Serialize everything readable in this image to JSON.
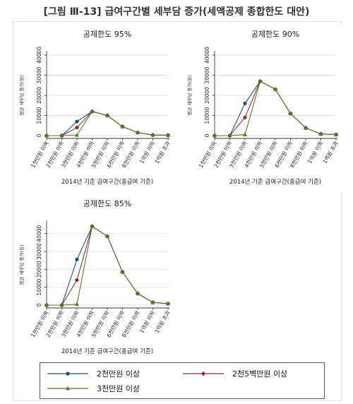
{
  "figure_title": "[그림 Ⅲ-13] 급여구간별 세부담 증가(세액공제 종합한도 대안)",
  "chart_data": [
    {
      "type": "line",
      "title": "공제한도 95%",
      "xlabel": "2014년 기준 급여구간(총급여 기준)",
      "ylabel": "평균 세부담 증가(원)",
      "ylim": [
        0,
        40000
      ],
      "yticks": [
        "0",
        "10000",
        "20000",
        "30000",
        "40000"
      ],
      "categories": [
        "1천만원 이하",
        "2천만원 이하",
        "3천만원 이하",
        "4천만원 이하",
        "5천만원 이하",
        "6천만원 이하",
        "8천만원 이하",
        "1억원 이하",
        "1억원 초과"
      ],
      "series": [
        {
          "name": "2천만원 이상",
          "values": [
            0,
            0,
            7000,
            12000,
            10000,
            4500,
            1500,
            300,
            200
          ]
        },
        {
          "name": "2천5백만원 이상",
          "values": [
            0,
            0,
            4000,
            12000,
            10000,
            4500,
            1500,
            300,
            200
          ]
        },
        {
          "name": "3천만원 이상",
          "values": [
            0,
            0,
            300,
            12000,
            10000,
            4500,
            1500,
            300,
            200
          ]
        }
      ]
    },
    {
      "type": "line",
      "title": "공제한도 90%",
      "xlabel": "2014년 기준 급여구간(총급여 기준)",
      "ylabel": "평균 세부담 증가(원)",
      "ylim": [
        0,
        40000
      ],
      "yticks": [
        "0",
        "10000",
        "20000",
        "30000",
        "40000"
      ],
      "categories": [
        "1천만원 이하",
        "2천만원 이하",
        "3천만원 이하",
        "4천만원 이하",
        "5천만원 이하",
        "6천만원 이하",
        "8천만원 이하",
        "1억원 이하",
        "1억원 초과"
      ],
      "series": [
        {
          "name": "2천만원 이상",
          "values": [
            0,
            0,
            16000,
            27000,
            23000,
            11000,
            3800,
            800,
            500
          ]
        },
        {
          "name": "2천5백만원 이상",
          "values": [
            0,
            0,
            9000,
            27000,
            23000,
            11000,
            3800,
            800,
            500
          ]
        },
        {
          "name": "3천만원 이상",
          "values": [
            0,
            0,
            500,
            27000,
            23000,
            11000,
            3800,
            800,
            500
          ]
        }
      ]
    },
    {
      "type": "line",
      "title": "공제한도 85%",
      "xlabel": "2014년 기준 급여구간(총급여 기준)",
      "ylabel": "평균 세부담 증가(원)",
      "ylim": [
        0,
        45000
      ],
      "yticks": [
        "0",
        "10000",
        "20000",
        "30000",
        "40000"
      ],
      "categories": [
        "1천만원 이하",
        "2천만원 이하",
        "3천만원 이하",
        "4천만원 이하",
        "5천만원 이하",
        "6천만원 이하",
        "8천만원 이하",
        "1억원 이하",
        "1억원 초과"
      ],
      "series": [
        {
          "name": "2천만원 이상",
          "values": [
            0,
            0,
            25500,
            44000,
            38500,
            18500,
            6500,
            1500,
            800
          ]
        },
        {
          "name": "2천5백만원 이상",
          "values": [
            0,
            0,
            14000,
            44000,
            38500,
            18500,
            6500,
            1500,
            800
          ]
        },
        {
          "name": "3천만원 이상",
          "values": [
            0,
            0,
            500,
            44000,
            38500,
            18500,
            6500,
            1500,
            800
          ]
        }
      ]
    }
  ],
  "legend": [
    {
      "label": "2천만원 이상",
      "color": "#1f4e79",
      "marker": "circle"
    },
    {
      "label": "2천5백만원 이상",
      "color": "#8b2d3a",
      "marker": "diamond"
    },
    {
      "label": "3천만원 이상",
      "color": "#5a7a2a",
      "marker": "triangle"
    }
  ],
  "colors": {
    "axis": "#333333",
    "grid": "#d9d9d9",
    "panel_bg": "#ffffff"
  }
}
